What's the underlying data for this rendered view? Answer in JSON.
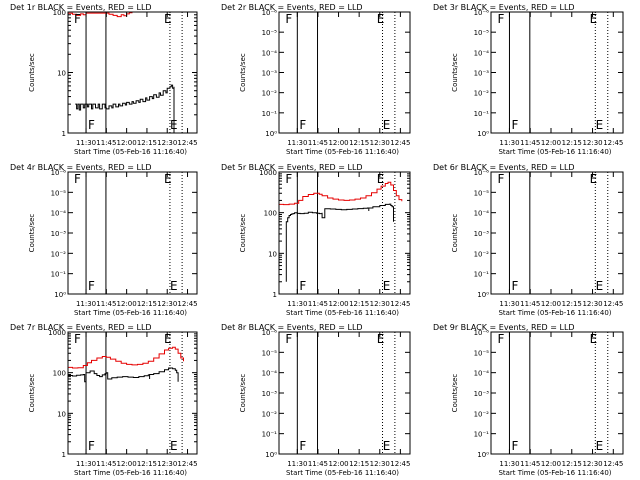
{
  "colors": {
    "events": "#000000",
    "lld": "#e60000",
    "background": "#ffffff"
  },
  "chart_data": [
    {
      "type": "line",
      "title": "Det 1r BLACK = Events, RED = LLD",
      "ylabel": "Counts/sec",
      "xlabel": "Start Time (05-Feb-16 11:16:40)",
      "xticks": [
        "11:30",
        "11:45",
        "12:00",
        "12:15",
        "12:30",
        "12:45"
      ],
      "yscale": "log",
      "ylim": [
        1,
        100
      ],
      "yticks": [
        "1",
        "10",
        "100"
      ],
      "markers": {
        "F": "11:30",
        "E": "12:38"
      },
      "series": [
        {
          "color": "#000000",
          "x": [
            "11:22",
            "11:23",
            "11:24",
            "11:25",
            "11:26",
            "11:28",
            "11:29",
            "11:30",
            "11:31",
            "11:32",
            "11:34",
            "11:35",
            "11:37",
            "11:39",
            "11:40",
            "11:42",
            "11:44",
            "11:45",
            "11:47",
            "11:49",
            "11:50",
            "11:52",
            "11:54",
            "11:55",
            "11:57",
            "11:59",
            "12:00",
            "12:02",
            "12:04",
            "12:05",
            "12:07",
            "12:09",
            "12:10",
            "12:12",
            "12:14",
            "12:15",
            "12:17",
            "12:19",
            "12:20",
            "12:22",
            "12:24",
            "12:25",
            "12:27",
            "12:29",
            "12:30",
            "12:32",
            "12:33",
            "12:34",
            "12:35",
            "12:35"
          ],
          "values": [
            3,
            2.5,
            3,
            2.4,
            3,
            2.6,
            3,
            3,
            2.7,
            3,
            2.5,
            3,
            2.6,
            3,
            2.5,
            3,
            2.6,
            2.5,
            2.8,
            2.6,
            3,
            2.7,
            3,
            2.8,
            3.1,
            2.9,
            3.2,
            3,
            3.3,
            3.1,
            3.4,
            3.2,
            3.6,
            3.3,
            3.8,
            3.5,
            4,
            3.7,
            4.3,
            3.9,
            4.6,
            4.2,
            5,
            4.6,
            5.5,
            5.8,
            6.2,
            5.5,
            5.8,
            1
          ]
        },
        {
          "color": "#e60000",
          "x": [
            "11:17",
            "11:20",
            "11:23",
            "11:26",
            "11:28",
            "11:30",
            "11:47",
            "11:50",
            "11:53",
            "11:56",
            "11:58",
            "12:00",
            "12:02",
            "12:04"
          ],
          "values": [
            95,
            92,
            88,
            93,
            90,
            96,
            92,
            88,
            84,
            90,
            87,
            93,
            97,
            100
          ]
        }
      ]
    },
    {
      "type": "line",
      "title": "Det 2r BLACK = Events, RED = LLD",
      "ylabel": "Counts/sec",
      "xlabel": "Start Time (05-Feb-16 11:16:40)",
      "xticks": [
        "11:30",
        "11:45",
        "12:00",
        "12:15",
        "12:30",
        "12:45"
      ],
      "yscale": "log",
      "yticks": [
        "10⁰",
        "10⁻¹",
        "10⁻²",
        "10⁻³",
        "10⁻⁴",
        "10⁻⁵",
        "10⁻⁶"
      ],
      "markers": {
        "F": "11:30",
        "E": "12:38"
      },
      "series": []
    },
    {
      "type": "line",
      "title": "Det 3r BLACK = Events, RED = LLD",
      "ylabel": "Counts/sec",
      "xlabel": "Start Time (05-Feb-16 11:16:40)",
      "xticks": [
        "11:30",
        "11:45",
        "12:00",
        "12:15",
        "12:30",
        "12:45"
      ],
      "yscale": "log",
      "yticks": [
        "10⁰",
        "10⁻¹",
        "10⁻²",
        "10⁻³",
        "10⁻⁴",
        "10⁻⁵",
        "10⁻⁶"
      ],
      "markers": {
        "F": "11:30",
        "E": "12:38"
      },
      "series": []
    },
    {
      "type": "line",
      "title": "Det 4r BLACK = Events, RED = LLD",
      "ylabel": "Counts/sec",
      "xlabel": "Start Time (05-Feb-16 11:16:40)",
      "xticks": [
        "11:30",
        "11:45",
        "12:00",
        "12:15",
        "12:30",
        "12:45"
      ],
      "yscale": "log",
      "yticks": [
        "10⁰",
        "10⁻¹",
        "10⁻²",
        "10⁻³",
        "10⁻⁴",
        "10⁻⁵",
        "10⁻⁶"
      ],
      "markers": {
        "F": "11:30",
        "E": "12:38"
      },
      "series": []
    },
    {
      "type": "line",
      "title": "Det 5r BLACK = Events, RED = LLD",
      "ylabel": "Counts/sec",
      "xlabel": "Start Time (05-Feb-16 11:16:40)",
      "xticks": [
        "11:30",
        "11:45",
        "12:00",
        "12:15",
        "12:30",
        "12:45"
      ],
      "yscale": "log",
      "ylim": [
        1,
        1000
      ],
      "yticks": [
        "1",
        "10",
        "100",
        "1000"
      ],
      "markers": {
        "F": "11:30",
        "E": "12:38"
      },
      "series": [
        {
          "color": "#000000",
          "x": [
            "11:22",
            "11:22",
            "11:23",
            "11:24",
            "11:25",
            "11:26",
            "11:27",
            "11:28",
            "11:28",
            "11:29",
            "11:30",
            "11:32",
            "11:35",
            "11:38",
            "11:41",
            "11:44",
            "11:46",
            "11:48",
            "11:48",
            "11:50",
            "11:54",
            "11:58",
            "12:02",
            "12:06",
            "12:10",
            "12:14",
            "12:18",
            "12:21",
            "12:22",
            "12:22",
            "12:25",
            "12:30",
            "12:34",
            "12:37",
            "12:38",
            "12:39",
            "12:40",
            "12:40"
          ],
          "values": [
            2,
            60,
            75,
            85,
            90,
            93,
            95,
            97,
            100,
            100,
            96,
            95,
            97,
            102,
            100,
            97,
            95,
            100,
            75,
            125,
            123,
            120,
            118,
            120,
            123,
            126,
            128,
            130,
            110,
            130,
            140,
            150,
            160,
            162,
            150,
            140,
            70,
            60
          ]
        },
        {
          "color": "#e60000",
          "x": [
            "11:17",
            "11:20",
            "11:24",
            "11:28",
            "11:31",
            "11:34",
            "11:38",
            "11:42",
            "11:46",
            "11:48",
            "11:52",
            "11:56",
            "12:00",
            "12:04",
            "12:08",
            "12:12",
            "12:16",
            "12:20",
            "12:24",
            "12:28",
            "12:31",
            "12:34",
            "12:36",
            "12:38",
            "12:40",
            "12:42",
            "12:44",
            "12:46"
          ],
          "values": [
            160,
            158,
            162,
            170,
            200,
            250,
            280,
            300,
            285,
            260,
            230,
            215,
            205,
            200,
            205,
            215,
            230,
            260,
            310,
            380,
            450,
            520,
            560,
            480,
            350,
            260,
            210,
            190
          ]
        }
      ]
    },
    {
      "type": "line",
      "title": "Det 6r BLACK = Events, RED = LLD",
      "ylabel": "Counts/sec",
      "xlabel": "Start Time (05-Feb-16 11:16:40)",
      "xticks": [
        "11:30",
        "11:45",
        "12:00",
        "12:15",
        "12:30",
        "12:45"
      ],
      "yscale": "log",
      "yticks": [
        "10⁰",
        "10⁻¹",
        "10⁻²",
        "10⁻³",
        "10⁻⁴",
        "10⁻⁵",
        "10⁻⁶"
      ],
      "markers": {
        "F": "11:30",
        "E": "12:38"
      },
      "series": []
    },
    {
      "type": "line",
      "title": "Det 7r BLACK = Events, RED = LLD",
      "ylabel": "Counts/sec",
      "xlabel": "Start Time (05-Feb-16 11:16:40)",
      "xticks": [
        "11:30",
        "11:45",
        "12:00",
        "12:15",
        "12:30",
        "12:45"
      ],
      "yscale": "log",
      "ylim": [
        1,
        1000
      ],
      "yticks": [
        "1",
        "10",
        "100",
        "1000"
      ],
      "markers": {
        "F": "11:30",
        "E": "12:38"
      },
      "series": [
        {
          "color": "#000000",
          "x": [
            "11:17",
            "11:20",
            "11:23",
            "11:26",
            "11:28",
            "11:29",
            "11:30",
            "11:33",
            "11:36",
            "11:38",
            "11:40",
            "11:42",
            "11:44",
            "11:45",
            "11:46",
            "11:46",
            "11:49",
            "11:53",
            "11:57",
            "12:01",
            "12:05",
            "12:09",
            "12:13",
            "12:16",
            "12:17",
            "12:17",
            "12:20",
            "12:24",
            "12:28",
            "12:31",
            "12:34",
            "12:36",
            "12:37",
            "12:38",
            "12:38"
          ],
          "values": [
            85,
            83,
            86,
            88,
            90,
            60,
            100,
            110,
            95,
            85,
            80,
            88,
            95,
            100,
            90,
            70,
            75,
            78,
            80,
            78,
            76,
            80,
            84,
            88,
            70,
            90,
            95,
            105,
            118,
            130,
            125,
            115,
            100,
            80,
            60
          ]
        },
        {
          "color": "#e60000",
          "x": [
            "11:17",
            "11:20",
            "11:24",
            "11:28",
            "11:31",
            "11:34",
            "11:38",
            "11:42",
            "11:45",
            "11:48",
            "11:52",
            "11:56",
            "12:00",
            "12:04",
            "12:08",
            "12:12",
            "12:16",
            "12:20",
            "12:24",
            "12:28",
            "12:31",
            "12:34",
            "12:36",
            "12:38",
            "12:40",
            "12:42"
          ],
          "values": [
            135,
            130,
            132,
            150,
            175,
            200,
            230,
            250,
            240,
            215,
            190,
            170,
            160,
            155,
            160,
            170,
            190,
            230,
            290,
            360,
            400,
            420,
            380,
            300,
            230,
            190
          ]
        }
      ]
    },
    {
      "type": "line",
      "title": "Det 8r BLACK = Events, RED = LLD",
      "ylabel": "Counts/sec",
      "xlabel": "Start Time (05-Feb-16 11:16:40)",
      "xticks": [
        "11:30",
        "11:45",
        "12:00",
        "12:15",
        "12:30",
        "12:45"
      ],
      "yscale": "log",
      "yticks": [
        "10⁰",
        "10⁻¹",
        "10⁻²",
        "10⁻³",
        "10⁻⁴",
        "10⁻⁵",
        "10⁻⁶"
      ],
      "markers": {
        "F": "11:30",
        "E": "12:38"
      },
      "series": []
    },
    {
      "type": "line",
      "title": "Det 9r BLACK = Events, RED = LLD",
      "ylabel": "Counts/sec",
      "xlabel": "Start Time (05-Feb-16 11:16:40)",
      "xticks": [
        "11:30",
        "11:45",
        "12:00",
        "12:15",
        "12:30",
        "12:45"
      ],
      "yscale": "log",
      "yticks": [
        "10⁰",
        "10⁻¹",
        "10⁻²",
        "10⁻³",
        "10⁻⁴",
        "10⁻⁵",
        "10⁻⁶"
      ],
      "markers": {
        "F": "11:30",
        "E": "12:38"
      },
      "series": []
    }
  ]
}
